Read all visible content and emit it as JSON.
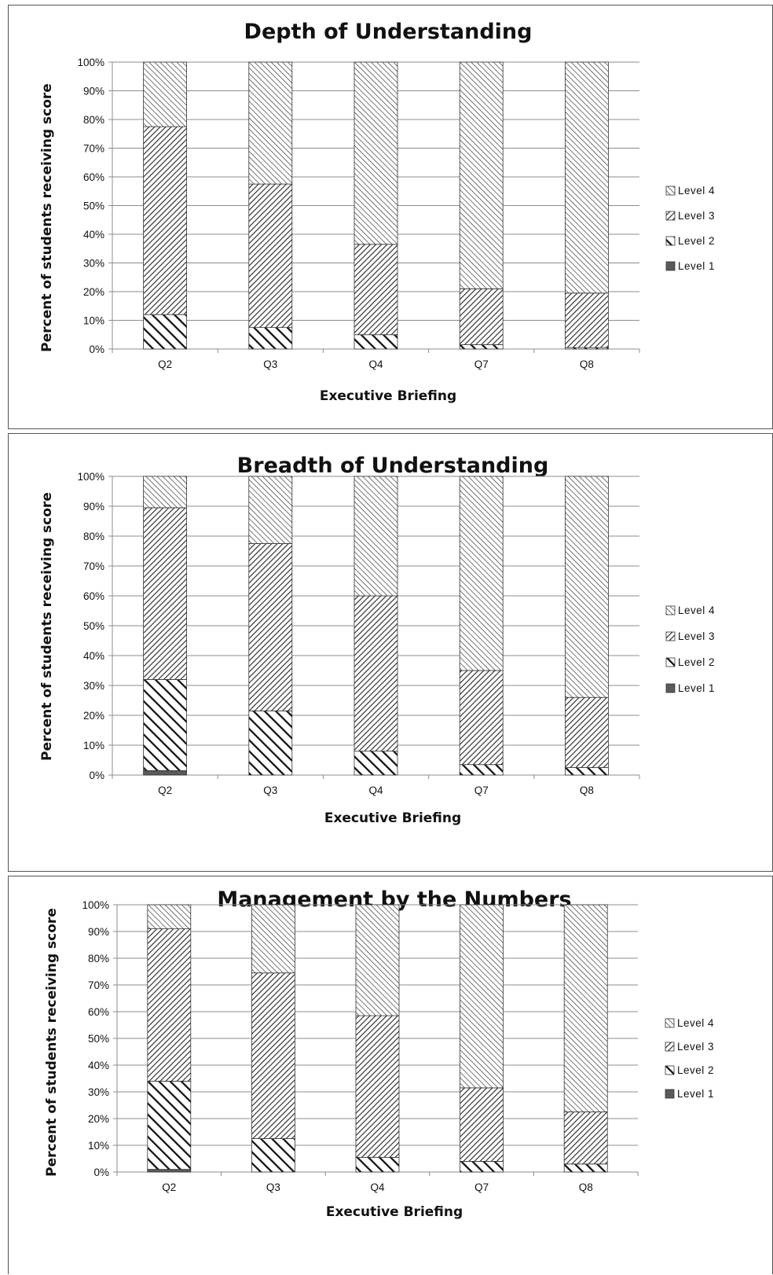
{
  "chart_data": [
    {
      "type": "bar",
      "stacked": true,
      "title": "Depth of Understanding",
      "xlabel": "Executive Briefing",
      "ylabel": "Percent of students receiving score",
      "ylim": [
        0,
        100
      ],
      "yticks": [
        "0%",
        "10%",
        "20%",
        "30%",
        "40%",
        "50%",
        "60%",
        "70%",
        "80%",
        "90%",
        "100%"
      ],
      "categories": [
        "Q2",
        "Q3",
        "Q4",
        "Q7",
        "Q8"
      ],
      "legend_position": "right",
      "grid": true,
      "series": [
        {
          "name": "Level 1",
          "values": [
            0,
            0,
            0,
            0,
            0
          ]
        },
        {
          "name": "Level 2",
          "values": [
            12,
            7.5,
            5,
            1.5,
            0.5
          ]
        },
        {
          "name": "Level 3",
          "values": [
            65.5,
            50,
            31.5,
            19.5,
            19
          ]
        },
        {
          "name": "Level 4",
          "values": [
            22.5,
            42.5,
            63.5,
            79,
            80.5
          ]
        }
      ]
    },
    {
      "type": "bar",
      "stacked": true,
      "title": "Breadth of Understanding",
      "xlabel": "Executive Briefing",
      "ylabel": "Percent of students receiving score",
      "ylim": [
        0,
        100
      ],
      "yticks": [
        "0%",
        "10%",
        "20%",
        "30%",
        "40%",
        "50%",
        "60%",
        "70%",
        "80%",
        "90%",
        "100%"
      ],
      "categories": [
        "Q2",
        "Q3",
        "Q4",
        "Q7",
        "Q8"
      ],
      "legend_position": "right",
      "grid": true,
      "series": [
        {
          "name": "Level 1",
          "values": [
            1.5,
            0,
            0,
            0,
            0
          ]
        },
        {
          "name": "Level 2",
          "values": [
            30.5,
            21.5,
            8,
            3.5,
            2.5
          ]
        },
        {
          "name": "Level 3",
          "values": [
            57.5,
            56,
            52,
            31.5,
            23.5
          ]
        },
        {
          "name": "Level 4",
          "values": [
            10.5,
            22.5,
            40,
            65,
            74
          ]
        }
      ]
    },
    {
      "type": "bar",
      "stacked": true,
      "title": "Management by the Numbers",
      "xlabel": "Executive Briefing",
      "ylabel": "Percent of students receiving score",
      "ylim": [
        0,
        100
      ],
      "yticks": [
        "0%",
        "10%",
        "20%",
        "30%",
        "40%",
        "50%",
        "60%",
        "70%",
        "80%",
        "90%",
        "100%"
      ],
      "categories": [
        "Q2",
        "Q3",
        "Q4",
        "Q7",
        "Q8"
      ],
      "legend_position": "right",
      "grid": true,
      "series": [
        {
          "name": "Level 1",
          "values": [
            1,
            0,
            0,
            0,
            0
          ]
        },
        {
          "name": "Level 2",
          "values": [
            33,
            12.5,
            5.5,
            4,
            3
          ]
        },
        {
          "name": "Level 3",
          "values": [
            57,
            62,
            53,
            27.5,
            19.5
          ]
        },
        {
          "name": "Level 4",
          "values": [
            9,
            25.5,
            41.5,
            68.5,
            77.5
          ]
        }
      ]
    }
  ],
  "legend_labels": [
    "Level 4",
    "Level 3",
    "Level 2",
    "Level 1"
  ],
  "colors": {
    "level1": "#5a5a5a",
    "hatch": "#2b2b2b",
    "grid": "#8c8c8c"
  }
}
